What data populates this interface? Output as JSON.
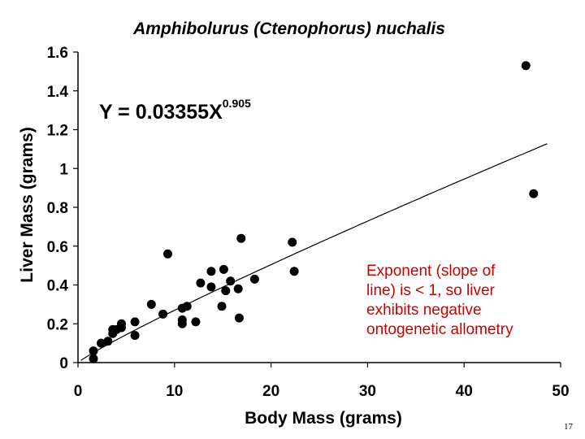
{
  "chart_data": {
    "type": "scatter",
    "title": "Amphibolurus (Ctenophorus) nuchalis",
    "xlabel": "Body Mass (grams)",
    "ylabel": "Liver Mass (grams)",
    "xlim": [
      0,
      50
    ],
    "ylim": [
      0,
      1.6
    ],
    "x_ticks": [
      0,
      10,
      20,
      30,
      40,
      50
    ],
    "x_tick_labels": [
      "0",
      "10",
      "20",
      "30",
      "40",
      "50"
    ],
    "y_ticks": [
      0,
      0.2,
      0.4,
      0.6,
      0.8,
      1.0,
      1.2,
      1.4,
      1.6
    ],
    "y_tick_labels": [
      "0",
      "0.2",
      "0.4",
      "0.6",
      "0.8",
      "1",
      "1.2",
      "1.4",
      "1.6"
    ],
    "grid": false,
    "points": [
      {
        "x": 1.6,
        "y": 0.02
      },
      {
        "x": 1.6,
        "y": 0.06
      },
      {
        "x": 2.4,
        "y": 0.1
      },
      {
        "x": 3.1,
        "y": 0.11
      },
      {
        "x": 3.6,
        "y": 0.15
      },
      {
        "x": 3.6,
        "y": 0.17
      },
      {
        "x": 4.0,
        "y": 0.17
      },
      {
        "x": 4.5,
        "y": 0.18
      },
      {
        "x": 4.5,
        "y": 0.2
      },
      {
        "x": 5.9,
        "y": 0.14
      },
      {
        "x": 5.9,
        "y": 0.21
      },
      {
        "x": 7.6,
        "y": 0.3
      },
      {
        "x": 8.8,
        "y": 0.25
      },
      {
        "x": 9.3,
        "y": 0.56
      },
      {
        "x": 10.8,
        "y": 0.2
      },
      {
        "x": 10.8,
        "y": 0.22
      },
      {
        "x": 10.8,
        "y": 0.28
      },
      {
        "x": 11.3,
        "y": 0.29
      },
      {
        "x": 12.2,
        "y": 0.21
      },
      {
        "x": 12.7,
        "y": 0.41
      },
      {
        "x": 13.8,
        "y": 0.39
      },
      {
        "x": 13.8,
        "y": 0.47
      },
      {
        "x": 14.9,
        "y": 0.29
      },
      {
        "x": 15.1,
        "y": 0.48
      },
      {
        "x": 15.3,
        "y": 0.37
      },
      {
        "x": 15.8,
        "y": 0.42
      },
      {
        "x": 16.6,
        "y": 0.38
      },
      {
        "x": 16.7,
        "y": 0.23
      },
      {
        "x": 16.9,
        "y": 0.64
      },
      {
        "x": 18.3,
        "y": 0.43
      },
      {
        "x": 22.2,
        "y": 0.62
      },
      {
        "x": 22.4,
        "y": 0.47
      },
      {
        "x": 46.4,
        "y": 1.53
      },
      {
        "x": 47.2,
        "y": 0.87
      }
    ],
    "fit_line": {
      "equation": "Y = 0.03355X^0.905",
      "a": 0.03355,
      "b": 0.905,
      "x_range": [
        0.3,
        48.6
      ]
    }
  },
  "equation": {
    "main": "Y = 0.03355X",
    "exponent": "0.905"
  },
  "annotation": {
    "lines": [
      "Exponent (slope of",
      "line) is < 1, so liver",
      "exhibits negative",
      "ontogenetic allometry"
    ],
    "color": "#cc0000"
  },
  "slide_number": "17"
}
